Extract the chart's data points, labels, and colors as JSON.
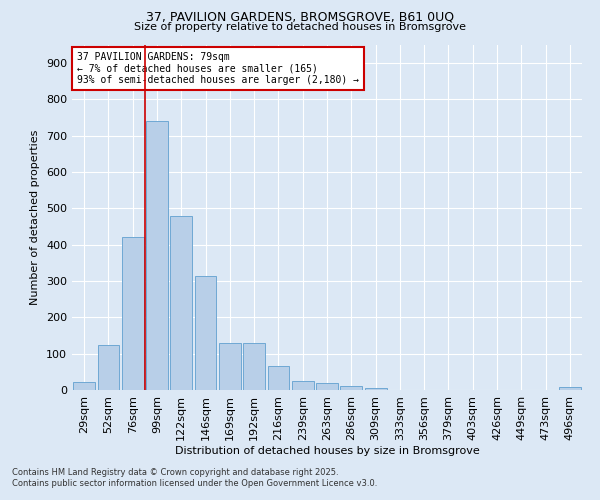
{
  "title1": "37, PAVILION GARDENS, BROMSGROVE, B61 0UQ",
  "title2": "Size of property relative to detached houses in Bromsgrove",
  "xlabel": "Distribution of detached houses by size in Bromsgrove",
  "ylabel": "Number of detached properties",
  "categories": [
    "29sqm",
    "52sqm",
    "76sqm",
    "99sqm",
    "122sqm",
    "146sqm",
    "169sqm",
    "192sqm",
    "216sqm",
    "239sqm",
    "263sqm",
    "286sqm",
    "309sqm",
    "333sqm",
    "356sqm",
    "379sqm",
    "403sqm",
    "426sqm",
    "449sqm",
    "473sqm",
    "496sqm"
  ],
  "values": [
    22,
    125,
    420,
    740,
    480,
    315,
    130,
    130,
    65,
    25,
    20,
    12,
    5,
    0,
    0,
    0,
    0,
    0,
    0,
    0,
    8
  ],
  "bar_color": "#b8cfe8",
  "bar_edge_color": "#6fa8d4",
  "vline_x": 2.5,
  "vline_color": "#cc0000",
  "annotation_text": "37 PAVILION GARDENS: 79sqm\n← 7% of detached houses are smaller (165)\n93% of semi-detached houses are larger (2,180) →",
  "annotation_box_color": "#ffffff",
  "annotation_box_edge_color": "#cc0000",
  "bg_color": "#dce8f5",
  "plot_bg_color": "#dce8f5",
  "grid_color": "#ffffff",
  "footnote1": "Contains HM Land Registry data © Crown copyright and database right 2025.",
  "footnote2": "Contains public sector information licensed under the Open Government Licence v3.0.",
  "ylim": [
    0,
    950
  ],
  "yticks": [
    0,
    100,
    200,
    300,
    400,
    500,
    600,
    700,
    800,
    900
  ]
}
